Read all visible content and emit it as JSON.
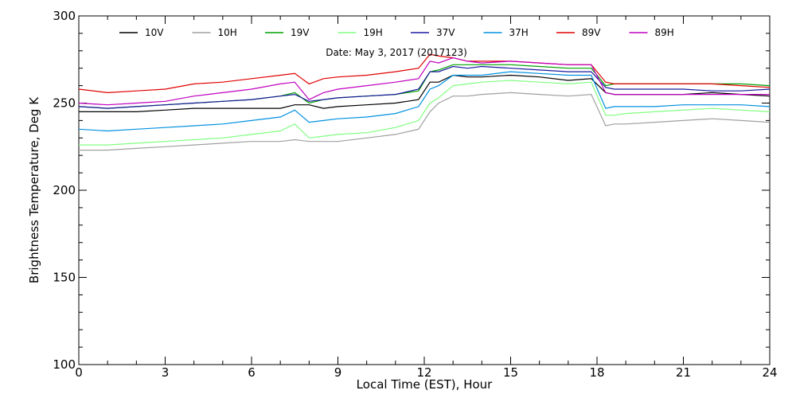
{
  "chart_data": {
    "type": "line",
    "subtitle": "Date: May  3, 2017 (2017123)",
    "xlabel": "Local Time (EST), Hour",
    "ylabel": "Brightness Temperature, Deg  K",
    "xlim": [
      0,
      24
    ],
    "ylim": [
      100,
      300
    ],
    "x_ticks": [
      "0",
      "3",
      "6",
      "9",
      "12",
      "15",
      "18",
      "21",
      "24"
    ],
    "y_ticks": [
      "100",
      "150",
      "200",
      "250",
      "300"
    ],
    "grid": false,
    "legend_placement": "top",
    "x": [
      0,
      1,
      2,
      3,
      4,
      5,
      6,
      7,
      7.5,
      8,
      8.5,
      9,
      10,
      11,
      11.8,
      12.2,
      12.5,
      13,
      13.5,
      14,
      15,
      16,
      17,
      17.8,
      18.3,
      18.6,
      19,
      20,
      21,
      22,
      23,
      24
    ],
    "series": [
      {
        "name": "10V",
        "color": "#000000",
        "values": [
          245,
          245,
          245,
          246,
          247,
          247,
          247,
          247,
          249,
          249,
          247,
          248,
          249,
          250,
          252,
          262,
          262,
          266,
          265,
          265,
          266,
          265,
          263,
          264,
          256,
          255,
          255,
          255,
          255,
          256,
          255,
          254
        ]
      },
      {
        "name": "10H",
        "color": "#a0a0a0",
        "values": [
          223,
          223,
          224,
          225,
          226,
          227,
          228,
          228,
          229,
          228,
          228,
          228,
          230,
          232,
          235,
          245,
          250,
          254,
          254,
          255,
          256,
          255,
          254,
          255,
          237,
          238,
          238,
          239,
          240,
          241,
          240,
          239
        ]
      },
      {
        "name": "19V",
        "color": "#00a000",
        "values": [
          248,
          247,
          248,
          249,
          250,
          251,
          252,
          254,
          256,
          250,
          252,
          253,
          254,
          255,
          257,
          268,
          269,
          272,
          272,
          272,
          272,
          271,
          270,
          270,
          260,
          261,
          261,
          261,
          261,
          261,
          261,
          260
        ]
      },
      {
        "name": "19H",
        "color": "#80ff80",
        "values": [
          226,
          226,
          227,
          228,
          229,
          230,
          232,
          234,
          238,
          230,
          231,
          232,
          233,
          236,
          240,
          250,
          253,
          260,
          261,
          262,
          263,
          262,
          261,
          262,
          243,
          243,
          244,
          245,
          246,
          247,
          246,
          245
        ]
      },
      {
        "name": "37V",
        "color": "#1a1aa0",
        "values": [
          248,
          247,
          248,
          249,
          250,
          251,
          252,
          254,
          255,
          251,
          252,
          253,
          254,
          255,
          258,
          268,
          268,
          271,
          270,
          271,
          270,
          269,
          268,
          268,
          259,
          258,
          258,
          258,
          258,
          257,
          257,
          258
        ]
      },
      {
        "name": "37H",
        "color": "#0090e0",
        "values": [
          235,
          234,
          235,
          236,
          237,
          238,
          240,
          242,
          246,
          239,
          240,
          241,
          242,
          244,
          248,
          258,
          260,
          266,
          266,
          266,
          268,
          267,
          266,
          266,
          247,
          248,
          248,
          248,
          249,
          249,
          249,
          248
        ]
      },
      {
        "name": "89V",
        "color": "#e00000",
        "values": [
          258,
          256,
          257,
          258,
          261,
          262,
          264,
          266,
          267,
          261,
          264,
          265,
          266,
          268,
          270,
          278,
          277,
          276,
          274,
          274,
          274,
          273,
          272,
          272,
          262,
          261,
          261,
          261,
          261,
          261,
          260,
          259
        ]
      },
      {
        "name": "89H",
        "color": "#c000c0",
        "values": [
          250,
          249,
          250,
          251,
          254,
          256,
          258,
          261,
          262,
          252,
          256,
          258,
          260,
          262,
          264,
          274,
          273,
          276,
          274,
          273,
          274,
          273,
          272,
          272,
          256,
          255,
          255,
          255,
          255,
          255,
          255,
          255
        ]
      }
    ]
  }
}
